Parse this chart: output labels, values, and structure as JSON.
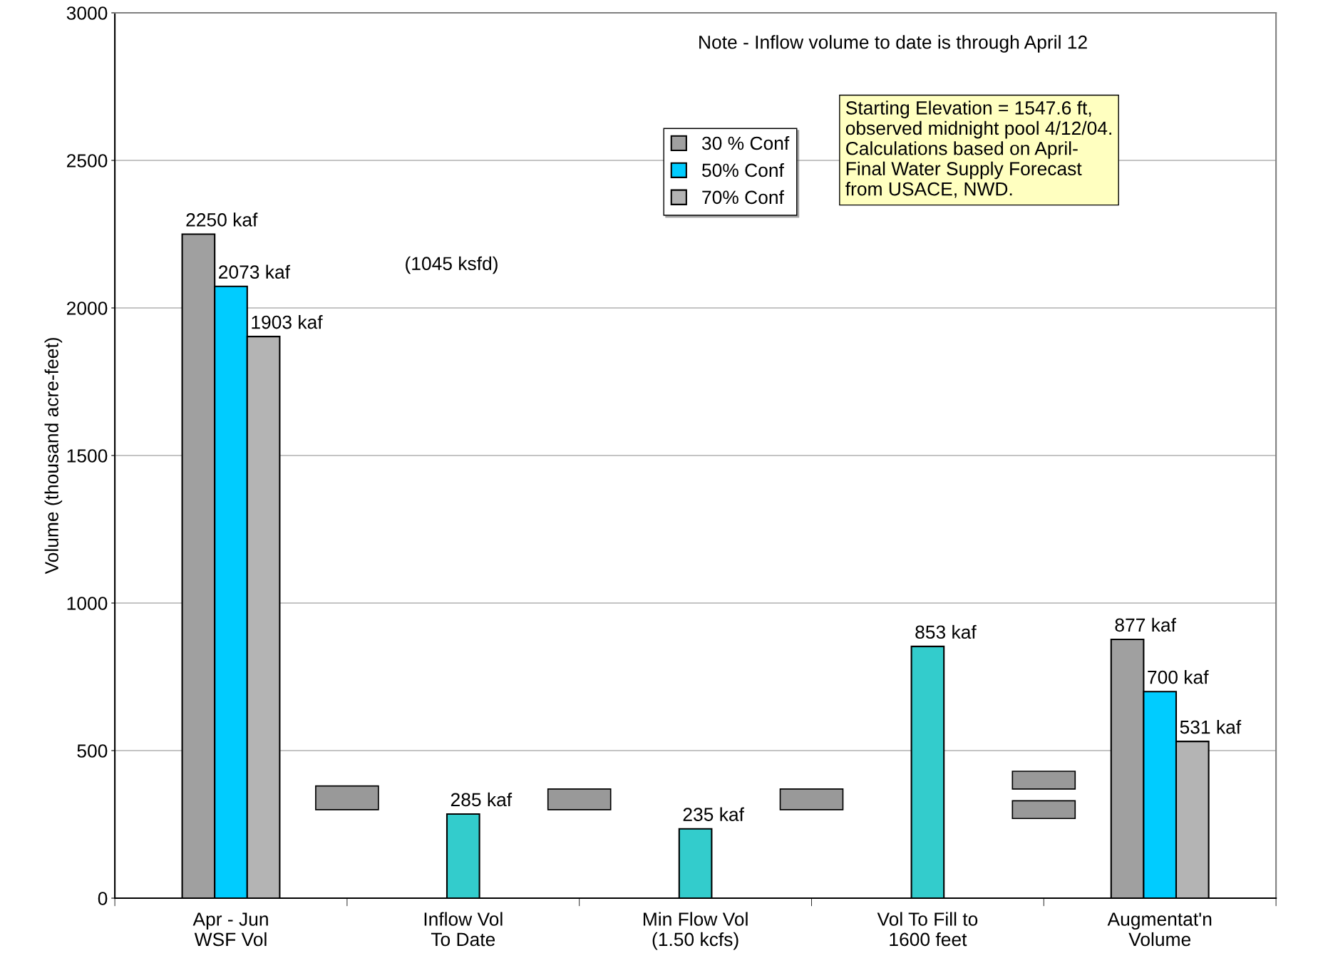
{
  "chart_data": {
    "type": "bar",
    "ylabel": "Volume (thousand acre-feet)",
    "categories": [
      "Apr - Jun\nWSF Vol",
      "Inflow Vol\nTo Date",
      "Min Flow Vol\n(1.50 kcfs)",
      "Vol To Fill to\n1600 feet",
      "Augmentat'n\nVolume"
    ],
    "series": [
      {
        "name": "30 % Conf",
        "color": "#a0a0a0",
        "values": [
          2250,
          null,
          null,
          null,
          877
        ],
        "value_labels": [
          "2250 kaf",
          null,
          null,
          null,
          "877 kaf"
        ]
      },
      {
        "name": "50% Conf",
        "color": "#00ccff",
        "values": [
          2073,
          null,
          null,
          null,
          700
        ],
        "value_labels": [
          "2073 kaf",
          null,
          null,
          null,
          "700 kaf"
        ]
      },
      {
        "name": "70% Conf",
        "color": "#b4b4b4",
        "values": [
          1903,
          null,
          null,
          null,
          531
        ],
        "value_labels": [
          "1903 kaf",
          null,
          null,
          null,
          "531 kaf"
        ]
      },
      {
        "color": "#33cccc",
        "values": [
          null,
          285,
          235,
          853,
          null
        ],
        "value_labels": [
          null,
          "285 kaf",
          "235 kaf",
          "853 kaf",
          null
        ]
      }
    ],
    "ylim": [
      0,
      3000
    ],
    "yticks": [
      0,
      500,
      1000,
      1500,
      2000,
      2500,
      3000
    ],
    "grid": "y",
    "legend": "top",
    "annotations": [
      "Note - Inflow volume to date is through April 12",
      "(1045 ksfd)",
      "Starting Elevation = 1547.6 ft,\nobserved midnight pool 4/12/04.\nCalculations based on April-\nFinal Water Supply Forecast\nfrom USACE, NWD."
    ]
  }
}
